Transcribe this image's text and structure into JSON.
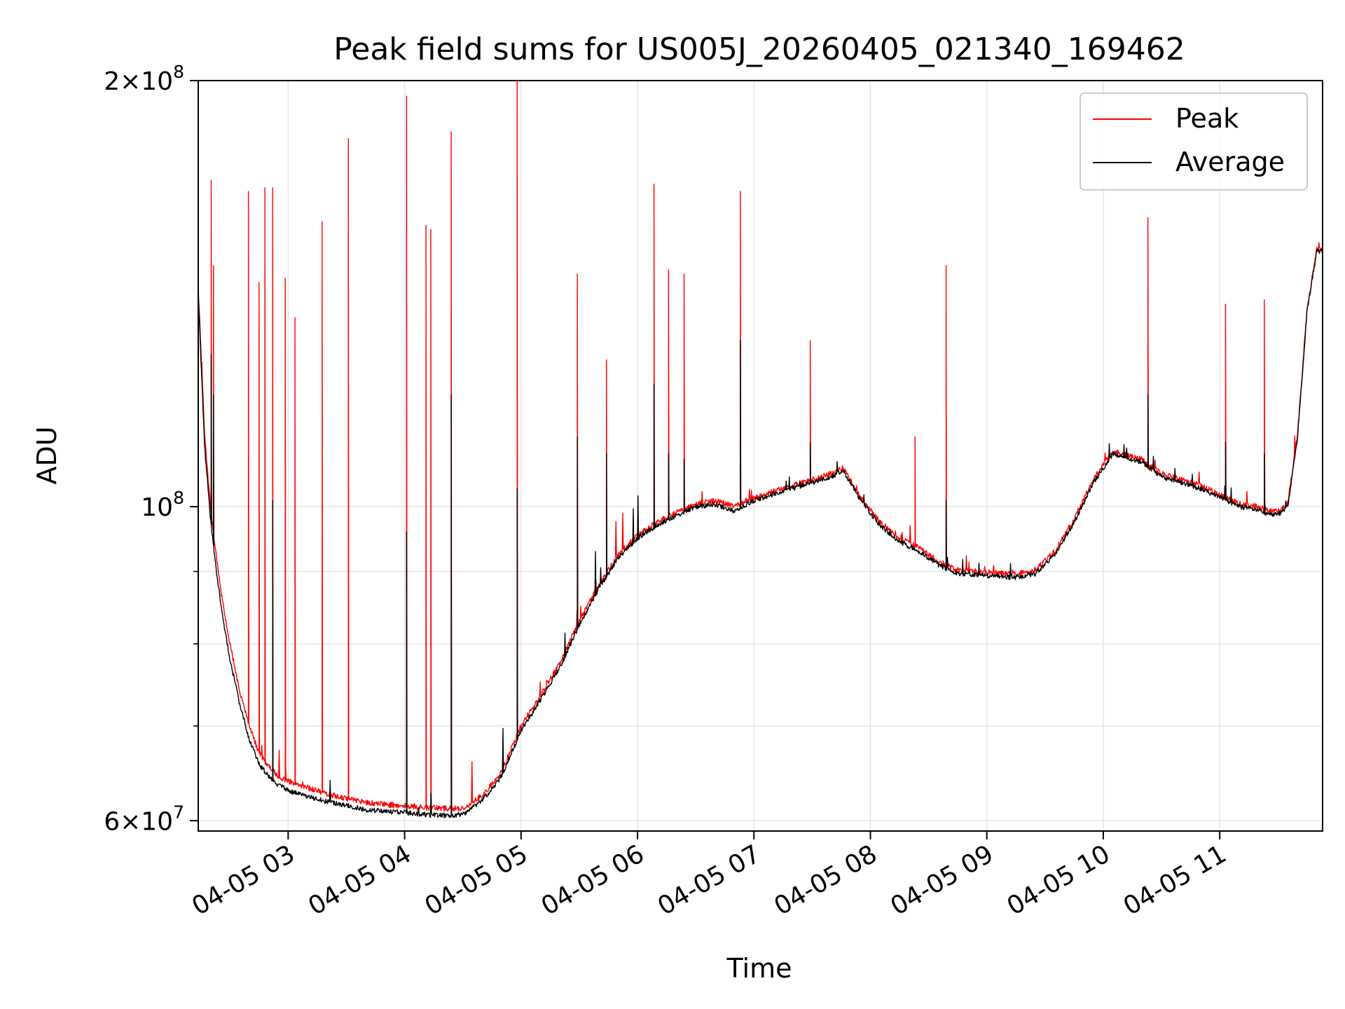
{
  "chart_data": {
    "type": "line",
    "title": "Peak field sums for US005J_20260405_021340_169462",
    "xlabel": "Time",
    "ylabel": "ADU",
    "xlim": [
      "2026-04-05T02:13:40",
      "2026-04-05T11:53:00"
    ],
    "ylim": [
      59000000,
      200000000
    ],
    "yscale": "log",
    "grid": true,
    "legend_position": "upper right",
    "x_ticks": [
      "04-05 03",
      "04-05 04",
      "04-05 05",
      "04-05 06",
      "04-05 07",
      "04-05 08",
      "04-05 09",
      "04-05 10",
      "04-05 11"
    ],
    "y_tick_labels": [
      {
        "value": 200000000,
        "base": "2×10",
        "exp": "8"
      },
      {
        "value": 100000000,
        "base": "10",
        "exp": "8"
      },
      {
        "value": 60000000,
        "base": "6×10",
        "exp": "7"
      }
    ],
    "y_minor_ticks": [
      70000000,
      80000000,
      90000000
    ],
    "colors": {
      "Peak": "#ff0000",
      "Average": "#000000"
    },
    "series": [
      {
        "name": "Peak",
        "color": "#ff0000",
        "x": [
          "2026-04-05T02:13:40",
          "2026-04-05T02:17:00",
          "2026-04-05T02:20:00",
          "2026-04-05T02:23:00",
          "2026-04-05T02:26:00",
          "2026-04-05T02:30:00",
          "2026-04-05T02:35:00",
          "2026-04-05T02:40:00",
          "2026-04-05T02:45:00",
          "2026-04-05T02:50:00",
          "2026-04-05T02:55:00",
          "2026-04-05T03:00:00",
          "2026-04-05T03:10:00",
          "2026-04-05T03:20:00",
          "2026-04-05T03:30:00",
          "2026-04-05T03:40:00",
          "2026-04-05T03:50:00",
          "2026-04-05T04:00:00",
          "2026-04-05T04:10:00",
          "2026-04-05T04:20:00",
          "2026-04-05T04:30:00",
          "2026-04-05T04:40:00",
          "2026-04-05T04:50:00",
          "2026-04-05T05:00:00",
          "2026-04-05T05:10:00",
          "2026-04-05T05:20:00",
          "2026-04-05T05:30:00",
          "2026-04-05T05:40:00",
          "2026-04-05T05:50:00",
          "2026-04-05T06:00:00",
          "2026-04-05T06:10:00",
          "2026-04-05T06:20:00",
          "2026-04-05T06:30:00",
          "2026-04-05T06:40:00",
          "2026-04-05T06:50:00",
          "2026-04-05T06:53:00",
          "2026-04-05T07:00:00",
          "2026-04-05T07:10:00",
          "2026-04-05T07:20:00",
          "2026-04-05T07:30:00",
          "2026-04-05T07:40:00",
          "2026-04-05T07:46:00",
          "2026-04-05T07:55:00",
          "2026-04-05T08:05:00",
          "2026-04-05T08:15:00",
          "2026-04-05T08:25:00",
          "2026-04-05T08:35:00",
          "2026-04-05T08:45:00",
          "2026-04-05T08:55:00",
          "2026-04-05T09:05:00",
          "2026-04-05T09:15:00",
          "2026-04-05T09:25:00",
          "2026-04-05T09:35:00",
          "2026-04-05T09:45:00",
          "2026-04-05T09:55:00",
          "2026-04-05T10:05:00",
          "2026-04-05T10:10:00",
          "2026-04-05T10:20:00",
          "2026-04-05T10:30:00",
          "2026-04-05T10:40:00",
          "2026-04-05T10:50:00",
          "2026-04-05T11:00:00",
          "2026-04-05T11:10:00",
          "2026-04-05T11:20:00",
          "2026-04-05T11:25:00",
          "2026-04-05T11:30:00",
          "2026-04-05T11:35:00",
          "2026-04-05T11:40:00",
          "2026-04-05T11:45:00",
          "2026-04-05T11:50:00",
          "2026-04-05T11:53:00"
        ],
        "y": [
          143000000,
          112000000,
          100000000,
          92000000,
          86000000,
          80000000,
          74000000,
          70000000,
          67000000,
          65500000,
          64500000,
          64000000,
          63300000,
          62700000,
          62200000,
          61800000,
          61600000,
          61500000,
          61300000,
          61200000,
          61200000,
          62500000,
          65000000,
          70000000,
          73500000,
          77500000,
          83000000,
          88000000,
          92500000,
          95500000,
          97500000,
          99000000,
          100500000,
          101000000,
          100000000,
          100500000,
          101500000,
          102500000,
          103500000,
          104500000,
          105500000,
          106500000,
          101500000,
          97500000,
          95000000,
          93500000,
          91500000,
          90200000,
          90000000,
          89800000,
          89600000,
          90200000,
          93000000,
          98000000,
          104500000,
          109500000,
          109000000,
          108000000,
          105500000,
          104500000,
          103500000,
          102000000,
          100500000,
          100000000,
          99300000,
          99200000,
          100500000,
          112000000,
          138000000,
          152000000,
          152000000
        ],
        "spikes": [
          {
            "x": "2026-04-05T02:20:20",
            "y": 170000000
          },
          {
            "x": "2026-04-05T02:21:30",
            "y": 148000000
          },
          {
            "x": "2026-04-05T02:39:30",
            "y": 167000000
          },
          {
            "x": "2026-04-05T02:45:00",
            "y": 144000000
          },
          {
            "x": "2026-04-05T02:48:00",
            "y": 168000000
          },
          {
            "x": "2026-04-05T02:52:00",
            "y": 168000000
          },
          {
            "x": "2026-04-05T02:58:30",
            "y": 145000000
          },
          {
            "x": "2026-04-05T03:03:30",
            "y": 136000000
          },
          {
            "x": "2026-04-05T03:17:30",
            "y": 159000000
          },
          {
            "x": "2026-04-05T03:31:00",
            "y": 182000000
          },
          {
            "x": "2026-04-05T04:01:00",
            "y": 195000000
          },
          {
            "x": "2026-04-05T04:11:00",
            "y": 158000000
          },
          {
            "x": "2026-04-05T04:13:30",
            "y": 157000000
          },
          {
            "x": "2026-04-05T04:24:00",
            "y": 184000000
          },
          {
            "x": "2026-04-05T04:58:00",
            "y": 200000000
          },
          {
            "x": "2026-04-05T05:29:00",
            "y": 146000000
          },
          {
            "x": "2026-04-05T05:44:00",
            "y": 127000000
          },
          {
            "x": "2026-04-05T06:08:30",
            "y": 169000000
          },
          {
            "x": "2026-04-05T06:16:00",
            "y": 147000000
          },
          {
            "x": "2026-04-05T06:24:00",
            "y": 146000000
          },
          {
            "x": "2026-04-05T06:53:00",
            "y": 167000000
          },
          {
            "x": "2026-04-05T07:29:00",
            "y": 131000000
          },
          {
            "x": "2026-04-05T08:23:00",
            "y": 112000000
          },
          {
            "x": "2026-04-05T08:39:00",
            "y": 148000000
          },
          {
            "x": "2026-04-05T10:23:00",
            "y": 160000000
          },
          {
            "x": "2026-04-05T11:03:00",
            "y": 139000000
          },
          {
            "x": "2026-04-05T11:23:00",
            "y": 140000000
          }
        ]
      },
      {
        "name": "Average",
        "color": "#000000",
        "x": [
          "2026-04-05T02:13:40",
          "2026-04-05T02:17:00",
          "2026-04-05T02:20:00",
          "2026-04-05T02:23:00",
          "2026-04-05T02:26:00",
          "2026-04-05T02:30:00",
          "2026-04-05T02:35:00",
          "2026-04-05T02:40:00",
          "2026-04-05T02:45:00",
          "2026-04-05T02:50:00",
          "2026-04-05T02:55:00",
          "2026-04-05T03:00:00",
          "2026-04-05T03:10:00",
          "2026-04-05T03:20:00",
          "2026-04-05T03:30:00",
          "2026-04-05T03:40:00",
          "2026-04-05T03:50:00",
          "2026-04-05T04:00:00",
          "2026-04-05T04:10:00",
          "2026-04-05T04:20:00",
          "2026-04-05T04:30:00",
          "2026-04-05T04:40:00",
          "2026-04-05T04:50:00",
          "2026-04-05T05:00:00",
          "2026-04-05T05:10:00",
          "2026-04-05T05:20:00",
          "2026-04-05T05:30:00",
          "2026-04-05T05:40:00",
          "2026-04-05T05:50:00",
          "2026-04-05T06:00:00",
          "2026-04-05T06:10:00",
          "2026-04-05T06:20:00",
          "2026-04-05T06:30:00",
          "2026-04-05T06:40:00",
          "2026-04-05T06:50:00",
          "2026-04-05T06:53:00",
          "2026-04-05T07:00:00",
          "2026-04-05T07:10:00",
          "2026-04-05T07:20:00",
          "2026-04-05T07:30:00",
          "2026-04-05T07:40:00",
          "2026-04-05T07:46:00",
          "2026-04-05T07:55:00",
          "2026-04-05T08:05:00",
          "2026-04-05T08:15:00",
          "2026-04-05T08:25:00",
          "2026-04-05T08:35:00",
          "2026-04-05T08:45:00",
          "2026-04-05T08:55:00",
          "2026-04-05T09:05:00",
          "2026-04-05T09:15:00",
          "2026-04-05T09:25:00",
          "2026-04-05T09:35:00",
          "2026-04-05T09:45:00",
          "2026-04-05T09:55:00",
          "2026-04-05T10:05:00",
          "2026-04-05T10:10:00",
          "2026-04-05T10:20:00",
          "2026-04-05T10:30:00",
          "2026-04-05T10:40:00",
          "2026-04-05T10:50:00",
          "2026-04-05T11:00:00",
          "2026-04-05T11:10:00",
          "2026-04-05T11:20:00",
          "2026-04-05T11:25:00",
          "2026-04-05T11:30:00",
          "2026-04-05T11:35:00",
          "2026-04-05T11:40:00",
          "2026-04-05T11:45:00",
          "2026-04-05T11:50:00",
          "2026-04-05T11:53:00"
        ],
        "y": [
          141000000,
          110000000,
          98000000,
          90000000,
          84000000,
          78000000,
          72500000,
          68500000,
          65800000,
          64500000,
          63600000,
          63000000,
          62400000,
          61900000,
          61500000,
          61100000,
          60900000,
          60800000,
          60600000,
          60500000,
          60600000,
          62000000,
          64500000,
          69500000,
          73000000,
          77000000,
          82500000,
          87500000,
          92000000,
          95000000,
          97000000,
          98600000,
          100000000,
          100300000,
          99300000,
          99800000,
          101000000,
          102000000,
          103000000,
          104000000,
          105000000,
          106000000,
          101000000,
          97000000,
          94500000,
          93000000,
          91000000,
          89700000,
          89500000,
          89300000,
          89100000,
          89700000,
          92500000,
          97500000,
          104000000,
          109000000,
          108500000,
          107500000,
          105000000,
          104000000,
          103000000,
          101500000,
          100000000,
          99500000,
          98800000,
          98700000,
          100000000,
          111500000,
          137500000,
          151500000,
          151500000
        ],
        "spikes": [
          {
            "x": "2026-04-05T02:20:20",
            "y": 128000000
          },
          {
            "x": "2026-04-05T02:21:30",
            "y": 120000000
          },
          {
            "x": "2026-04-05T02:52:00",
            "y": 101000000
          },
          {
            "x": "2026-04-05T04:01:00",
            "y": 96000000
          },
          {
            "x": "2026-04-05T04:24:00",
            "y": 120000000
          },
          {
            "x": "2026-04-05T04:58:00",
            "y": 103000000
          },
          {
            "x": "2026-04-05T05:29:00",
            "y": 112000000
          },
          {
            "x": "2026-04-05T05:44:00",
            "y": 109000000
          },
          {
            "x": "2026-04-05T06:08:30",
            "y": 122000000
          },
          {
            "x": "2026-04-05T06:16:00",
            "y": 109000000
          },
          {
            "x": "2026-04-05T06:24:00",
            "y": 108000000
          },
          {
            "x": "2026-04-05T06:53:00",
            "y": 131000000
          },
          {
            "x": "2026-04-05T07:29:00",
            "y": 111000000
          },
          {
            "x": "2026-04-05T08:39:00",
            "y": 101000000
          },
          {
            "x": "2026-04-05T10:23:00",
            "y": 120000000
          },
          {
            "x": "2026-04-05T11:03:00",
            "y": 111000000
          },
          {
            "x": "2026-04-05T11:23:00",
            "y": 109000000
          }
        ]
      }
    ]
  }
}
